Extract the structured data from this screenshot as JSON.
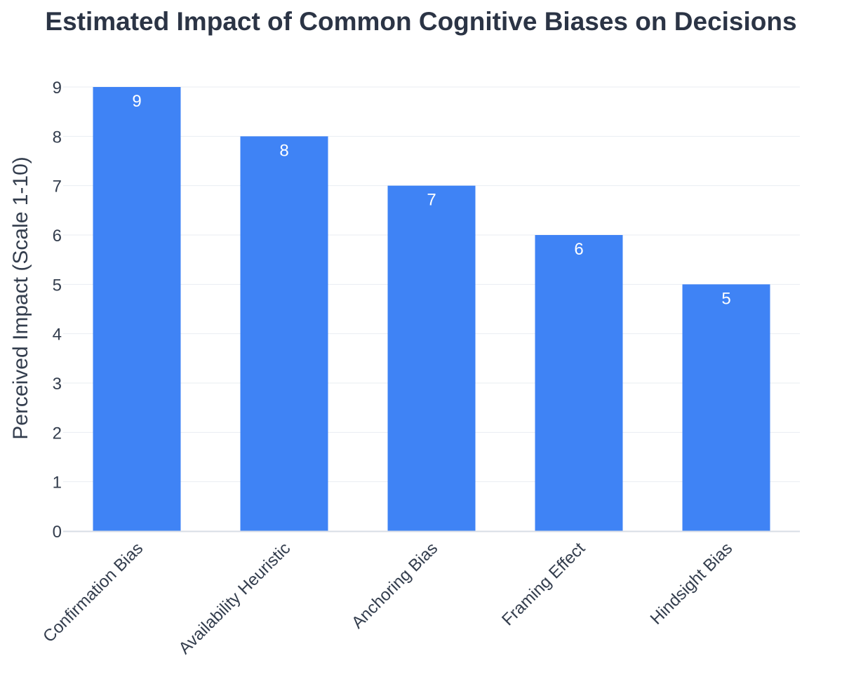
{
  "chart_data": {
    "type": "bar",
    "title": "Estimated Impact of Common Cognitive Biases on Decisions",
    "xlabel": "",
    "ylabel": "Perceived Impact (Scale 1-10)",
    "categories": [
      "Confirmation Bias",
      "Availability Heuristic",
      "Anchoring Bias",
      "Framing Effect",
      "Hindsight Bias"
    ],
    "values": [
      9,
      8,
      7,
      6,
      5
    ],
    "ylim": [
      0,
      9
    ],
    "yticks": [
      0,
      1,
      2,
      3,
      4,
      5,
      6,
      7,
      8,
      9
    ],
    "data_labels": [
      "9",
      "8",
      "7",
      "6",
      "5"
    ],
    "grid": true,
    "legend": "none",
    "colors": {
      "bar": "#3f83f5",
      "grid": "#e9edf2",
      "axis": "#d8dde5",
      "text": "#333d4d",
      "title": "#2b3445",
      "data_label": "#ffffff"
    }
  }
}
